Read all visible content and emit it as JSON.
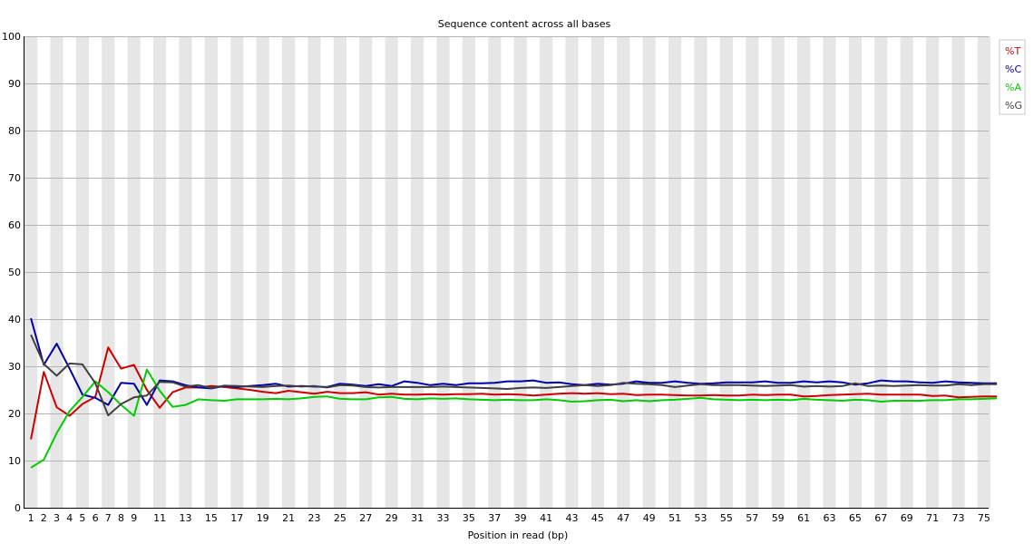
{
  "chart_data": {
    "type": "line",
    "title": "Sequence content across all bases",
    "xlabel": "Position in read (bp)",
    "ylabel": "",
    "ylim": [
      0,
      100
    ],
    "yticks": [
      0,
      10,
      20,
      30,
      40,
      50,
      60,
      70,
      80,
      90,
      100
    ],
    "xlim": [
      1,
      76
    ],
    "xtick_labels": [
      "1",
      "2",
      "3",
      "4",
      "5",
      "6",
      "7",
      "8",
      "9",
      "11",
      "13",
      "15",
      "17",
      "19",
      "21",
      "23",
      "25",
      "27",
      "29",
      "31",
      "33",
      "35",
      "37",
      "39",
      "41",
      "43",
      "45",
      "47",
      "49",
      "51",
      "53",
      "55",
      "57",
      "59",
      "61",
      "63",
      "65",
      "67",
      "69",
      "71",
      "73",
      "75"
    ],
    "grid": true,
    "legend_position": "top-right",
    "x": [
      1,
      2,
      3,
      4,
      5,
      6,
      7,
      8,
      9,
      10,
      11,
      12,
      13,
      14,
      15,
      16,
      17,
      18,
      19,
      20,
      21,
      22,
      23,
      24,
      25,
      26,
      27,
      28,
      29,
      30,
      31,
      32,
      33,
      34,
      35,
      36,
      37,
      38,
      39,
      40,
      41,
      42,
      43,
      44,
      45,
      46,
      47,
      48,
      49,
      50,
      51,
      52,
      53,
      54,
      55,
      56,
      57,
      58,
      59,
      60,
      61,
      62,
      63,
      64,
      65,
      66,
      67,
      68,
      69,
      70,
      71,
      72,
      73,
      74,
      75,
      76
    ],
    "series": [
      {
        "name": "%T",
        "color": "#cc0000",
        "values": [
          14.5,
          28.8,
          21.3,
          19.5,
          22.0,
          23.5,
          34.0,
          29.5,
          30.3,
          25.0,
          21.2,
          24.5,
          25.5,
          25.5,
          25.8,
          25.6,
          25.3,
          25.0,
          24.6,
          24.3,
          24.8,
          24.5,
          24.2,
          24.6,
          24.3,
          24.3,
          24.5,
          24.0,
          24.2,
          24.0,
          24.0,
          24.1,
          24.0,
          24.1,
          24.1,
          24.2,
          24.0,
          24.1,
          24.0,
          23.8,
          24.0,
          24.2,
          24.3,
          24.2,
          24.3,
          24.1,
          24.2,
          23.9,
          24.0,
          24.0,
          23.9,
          23.8,
          23.8,
          23.9,
          23.8,
          23.8,
          24.0,
          23.9,
          24.0,
          24.0,
          23.6,
          23.7,
          23.9,
          24.0,
          24.1,
          24.2,
          24.0,
          24.0,
          24.0,
          24.0,
          23.7,
          23.8,
          23.4,
          23.5,
          23.6,
          23.6
        ]
      },
      {
        "name": "%C",
        "color": "#0000aa",
        "values": [
          40.2,
          30.3,
          34.8,
          29.5,
          24.0,
          23.3,
          21.8,
          26.5,
          26.3,
          21.8,
          27.0,
          26.8,
          26.0,
          25.5,
          25.3,
          25.8,
          25.6,
          25.8,
          26.0,
          26.3,
          25.7,
          25.8,
          25.7,
          25.6,
          26.3,
          26.1,
          25.8,
          26.2,
          25.8,
          26.8,
          26.5,
          26.0,
          26.3,
          26.0,
          26.4,
          26.4,
          26.5,
          26.8,
          26.8,
          27.0,
          26.5,
          26.6,
          26.2,
          26.0,
          26.3,
          26.1,
          26.3,
          26.8,
          26.5,
          26.5,
          26.8,
          26.5,
          26.3,
          26.4,
          26.6,
          26.6,
          26.6,
          26.8,
          26.5,
          26.5,
          26.8,
          26.6,
          26.8,
          26.6,
          26.1,
          26.4,
          27.0,
          26.8,
          26.8,
          26.6,
          26.5,
          26.8,
          26.6,
          26.5,
          26.4,
          26.4
        ]
      },
      {
        "name": "%A",
        "color": "#00cc00",
        "values": [
          8.5,
          10.2,
          15.8,
          20.5,
          23.5,
          26.8,
          24.5,
          21.8,
          19.5,
          29.3,
          24.8,
          21.4,
          21.8,
          23.0,
          22.8,
          22.7,
          23.0,
          23.0,
          23.0,
          23.1,
          23.0,
          23.2,
          23.5,
          23.6,
          23.1,
          23.0,
          23.0,
          23.4,
          23.5,
          23.1,
          23.0,
          23.2,
          23.1,
          23.2,
          23.0,
          22.9,
          22.8,
          22.9,
          22.8,
          22.8,
          23.0,
          22.8,
          22.5,
          22.6,
          22.8,
          22.9,
          22.6,
          22.8,
          22.6,
          22.8,
          22.9,
          23.1,
          23.3,
          23.0,
          22.9,
          22.8,
          22.9,
          22.8,
          22.9,
          22.8,
          23.1,
          22.9,
          22.8,
          22.7,
          22.9,
          22.8,
          22.5,
          22.7,
          22.7,
          22.7,
          22.8,
          22.8,
          23.0,
          23.0,
          23.1,
          23.2
        ]
      },
      {
        "name": "%G",
        "color": "#404040",
        "values": [
          36.7,
          30.5,
          28.0,
          30.6,
          30.4,
          26.4,
          19.6,
          22.0,
          23.4,
          23.8,
          26.7,
          26.6,
          25.7,
          26.0,
          25.4,
          25.9,
          25.8,
          25.7,
          25.6,
          25.8,
          25.9,
          25.7,
          25.8,
          25.5,
          26.0,
          25.9,
          25.6,
          25.5,
          25.6,
          25.6,
          25.6,
          25.6,
          25.7,
          25.6,
          25.5,
          25.4,
          25.3,
          25.2,
          25.4,
          25.5,
          25.4,
          25.6,
          25.8,
          26.0,
          25.8,
          26.0,
          26.5,
          26.3,
          26.2,
          26.0,
          25.6,
          25.9,
          26.2,
          26.0,
          26.0,
          26.0,
          25.9,
          25.8,
          25.9,
          26.0,
          25.7,
          25.8,
          25.7,
          25.8,
          26.4,
          25.8,
          25.9,
          25.8,
          25.9,
          26.0,
          25.9,
          25.9,
          26.2,
          26.0,
          26.2,
          26.2
        ]
      }
    ]
  }
}
